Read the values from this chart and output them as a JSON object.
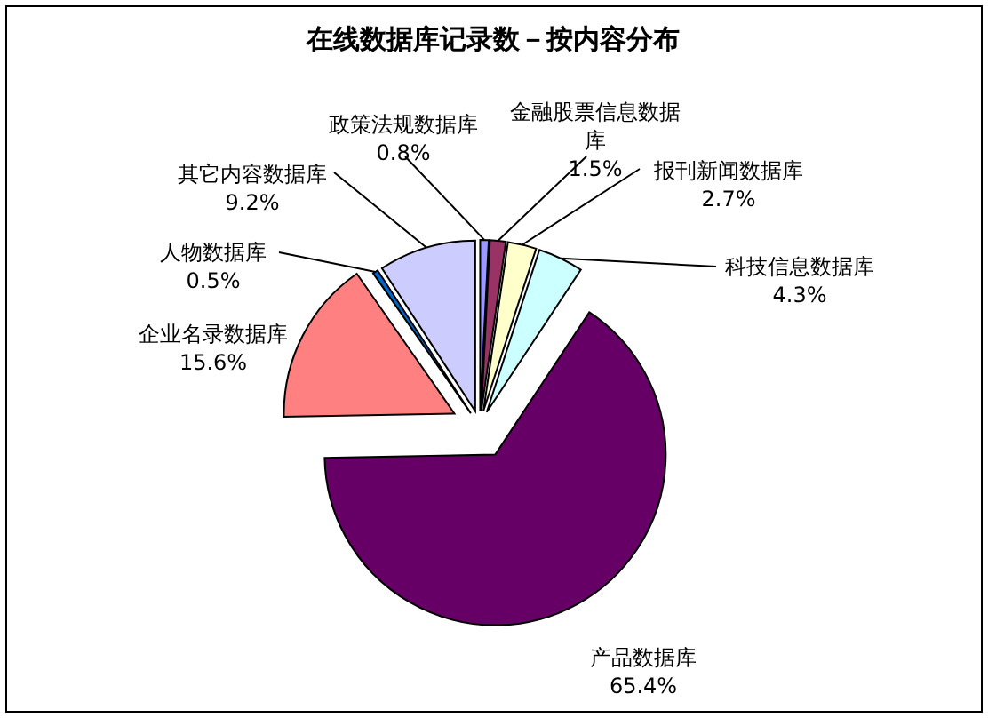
{
  "chart_data": {
    "type": "pie",
    "title": "在线数据库记录数－按内容分布",
    "categories": [
      "政策法规数据库",
      "金融股票信息数据库",
      "报刊新闻数据库",
      "科技信息数据库",
      "产品数据库",
      "企业名录数据库",
      "人物数据库",
      "其它内容数据库"
    ],
    "values": [
      0.8,
      1.5,
      2.7,
      4.3,
      65.4,
      15.6,
      0.5,
      9.2
    ],
    "colors": [
      "#9999ff",
      "#993366",
      "#ffffcc",
      "#ccffff",
      "#660066",
      "#ff8080",
      "#0066cc",
      "#ccccff"
    ],
    "value_labels": [
      "0.8%",
      "1.5%",
      "2.7%",
      "4.3%",
      "65.4%",
      "15.6%",
      "0.5%",
      "9.2%"
    ]
  }
}
